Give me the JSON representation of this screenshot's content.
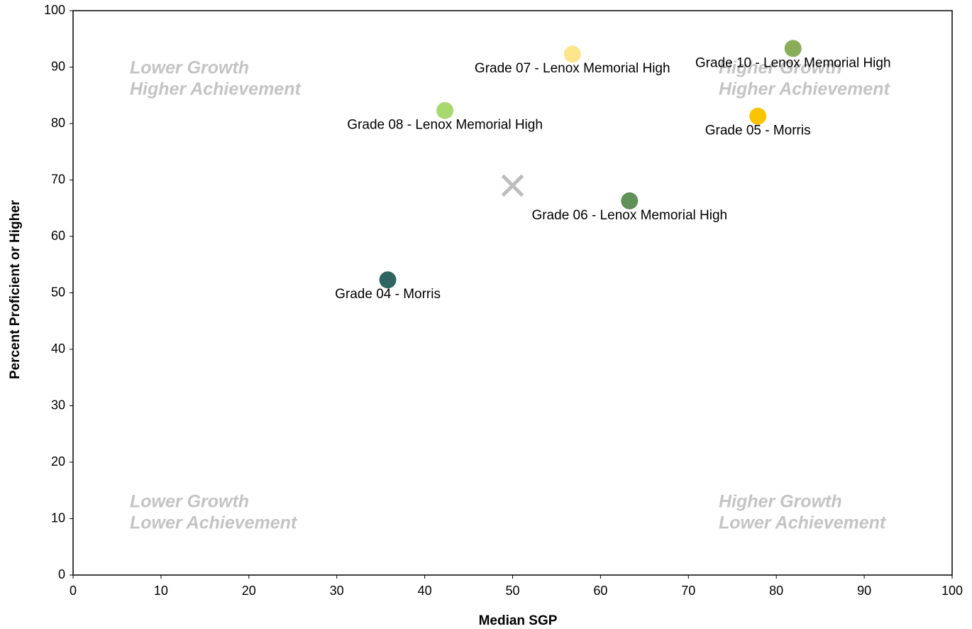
{
  "chart_data": {
    "type": "scatter",
    "xlabel": "Median SGP",
    "ylabel": "Percent Proficient or Higher",
    "xlim": [
      0,
      100
    ],
    "xticks": [
      0,
      10,
      20,
      30,
      40,
      50,
      60,
      70,
      80,
      90,
      100
    ],
    "ylim": [
      0,
      100
    ],
    "yticks": [
      0,
      10,
      20,
      30,
      40,
      50,
      60,
      70,
      80,
      90,
      100
    ],
    "grid": false,
    "series": [
      {
        "name": "Grade 07 - Lenox Memorial High",
        "color": "#fde58c",
        "x": [
          56.8
        ],
        "values": [
          92.3
        ]
      },
      {
        "name": "Grade 10 - Lenox Memorial High",
        "color": "#8aad5a",
        "x": [
          81.9
        ],
        "values": [
          93.3
        ]
      },
      {
        "name": "Grade 08 - Lenox Memorial High",
        "color": "#a8d970",
        "x": [
          42.3
        ],
        "values": [
          82.3
        ]
      },
      {
        "name": "Grade 05 - Morris",
        "color": "#fbc400",
        "x": [
          77.9
        ],
        "values": [
          81.3
        ]
      },
      {
        "name": "Grade 06 - Lenox Memorial High",
        "color": "#5f9158",
        "x": [
          63.3
        ],
        "values": [
          66.3
        ]
      },
      {
        "name": "Grade 04 - Morris",
        "color": "#2e6560",
        "x": [
          35.8
        ],
        "values": [
          52.3
        ]
      }
    ],
    "marker": {
      "x": 50,
      "y": 69,
      "color": "#bdbdbd"
    },
    "annotations": [
      {
        "lines": [
          "Lower Growth",
          "Higher Achievement"
        ],
        "position": "top-left"
      },
      {
        "lines": [
          "Higher Growth",
          "Higher Achievement"
        ],
        "position": "top-right"
      },
      {
        "lines": [
          "Lower Growth",
          "Lower Achievement"
        ],
        "position": "bottom-left"
      },
      {
        "lines": [
          "Higher Growth",
          "Lower Achievement"
        ],
        "position": "bottom-right"
      }
    ]
  }
}
